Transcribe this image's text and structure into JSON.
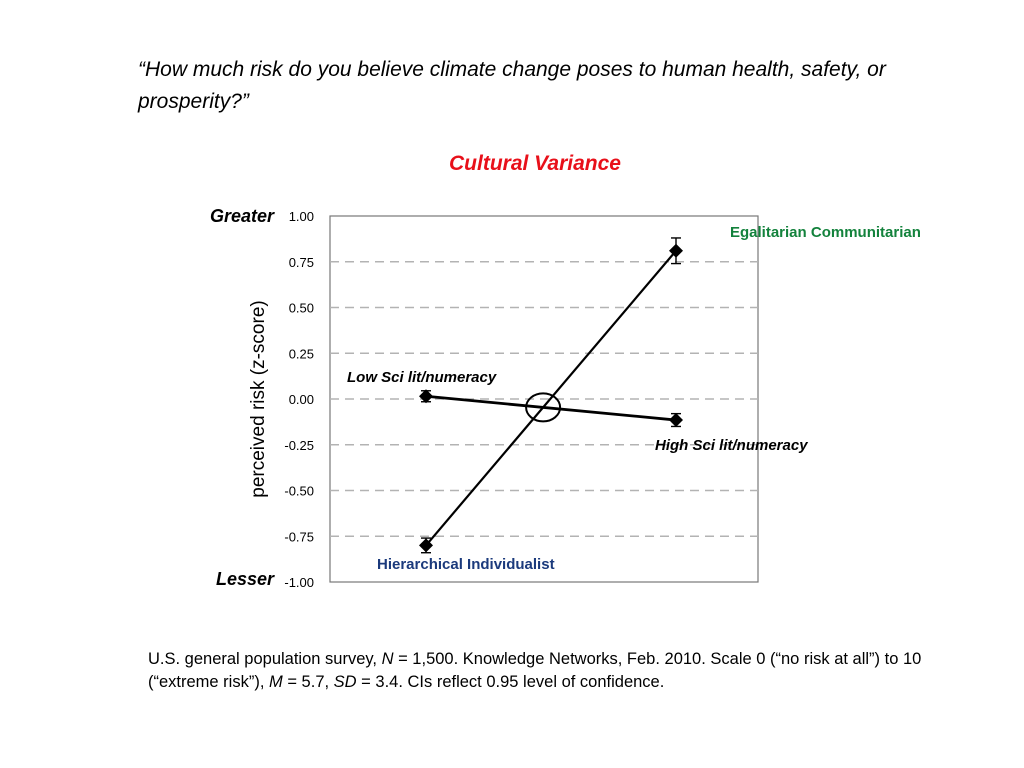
{
  "question": "“How much risk do you believe climate change poses to human health, safety, or prosperity?”",
  "footnote": {
    "text1": "U.S. general population survey, ",
    "n_label": "N",
    "text2": " = 1,500. Knowledge Networks, Feb. 2010. Scale 0 (“no risk at all”) to 10 (“extreme risk”), ",
    "m_label": "M",
    "text3": " = 5.7, ",
    "sd_label": "SD",
    "text4": " = 3.4. CIs reflect 0.95 level of confidence."
  },
  "colors": {
    "title": "#e8101a",
    "egalitarian": "#13823c",
    "hierarchical": "#1b3a7c",
    "grid": "#b3b3b3"
  },
  "chart_data": {
    "type": "line",
    "title": "Cultural Variance",
    "ylabel": "perceived risk (z-score)",
    "ylim": [
      -1.0,
      1.0
    ],
    "yticks": [
      1.0,
      0.75,
      0.5,
      0.25,
      0.0,
      -0.25,
      -0.5,
      -0.75,
      -1.0
    ],
    "ytick_labels": [
      "1.00",
      "0.75",
      "0.50",
      "0.25",
      "0.00",
      "-0.25",
      "-0.50",
      "-0.75",
      "-1.00"
    ],
    "ytop_label": "Greater",
    "ybottom_label": "Lesser",
    "grid": true,
    "x": [
      "left",
      "right"
    ],
    "series": [
      {
        "key": "culture",
        "values": [
          -0.8,
          0.81
        ],
        "ci_half": [
          0.04,
          0.07
        ],
        "labels": [
          "Hierarchical Individualist",
          "Egalitarian Communitarian"
        ]
      },
      {
        "key": "scilit",
        "values": [
          0.015,
          -0.115
        ],
        "ci_half": [
          0.03,
          0.035
        ],
        "labels": [
          "Low Sci lit/numeracy",
          "High Sci lit/numeracy"
        ]
      }
    ]
  }
}
